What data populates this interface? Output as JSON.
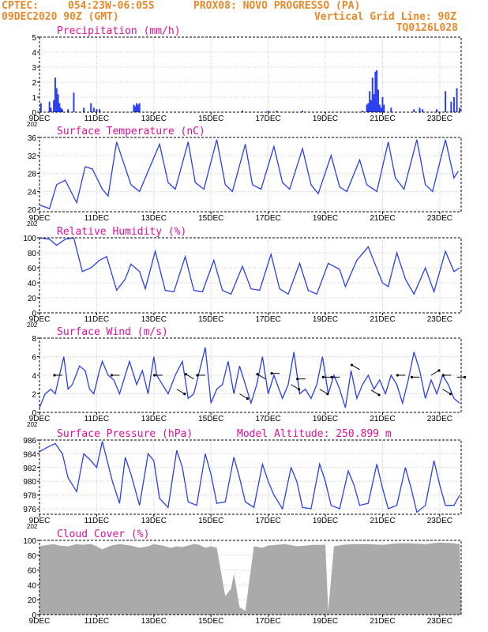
{
  "header": {
    "line1_left": "CPTEC:",
    "line1_coords": "054:23W-06:05S",
    "line1_station": "PROX08: NOVO PROGRESSO (PA)",
    "line2_left": "09DEC2020 90Z (GMT)",
    "line2_right": "Vertical Grid Line: 90Z",
    "line3_right": "TQ0126L028"
  },
  "colors": {
    "header": "#e8892a",
    "title": "#e0109a",
    "series": "#2a3ff0",
    "cloud": "#aaaaaa",
    "wind_arrow": "#000000",
    "grid": "#c8c8c8"
  },
  "x_ticks": [
    "9DEC",
    "11DEC",
    "13DEC",
    "15DEC",
    "17DEC",
    "19DEC",
    "21DEC",
    "23DEC"
  ],
  "x_cut_label": "202",
  "chart_data": [
    {
      "id": "precip",
      "type": "bar",
      "title": "Precipitation (mm/h)",
      "ylim": [
        0,
        5
      ],
      "yticks": [
        0,
        1,
        2,
        3,
        4,
        5
      ],
      "grid": true,
      "x_days_from_9dec": [
        0.05,
        0.35,
        0.4,
        0.5,
        0.55,
        0.6,
        0.65,
        0.7,
        0.75,
        0.8,
        1.0,
        1.2,
        1.55,
        1.8,
        1.9,
        2.0,
        2.1,
        3.3,
        3.35,
        3.4,
        3.45,
        3.5,
        7.1,
        8.0,
        8.3,
        9.2,
        11.3,
        11.45,
        11.5,
        11.55,
        11.6,
        11.65,
        11.7,
        11.75,
        11.8,
        11.85,
        11.9,
        11.95,
        12.0,
        12.05,
        12.3,
        13.1,
        13.3,
        13.4,
        13.9,
        14.2,
        14.4,
        14.5,
        14.6,
        14.7
      ],
      "values": [
        0.6,
        0.7,
        0.3,
        0.8,
        2.3,
        1.6,
        1.2,
        0.6,
        0.3,
        0.2,
        0.2,
        1.3,
        0.3,
        0.6,
        0.3,
        0.2,
        0.2,
        0.5,
        0.4,
        0.6,
        0.5,
        0.6,
        0.1,
        0.1,
        0.1,
        0.1,
        0.1,
        0.5,
        0.6,
        1.4,
        0.8,
        2.3,
        1.2,
        2.7,
        2.8,
        1.5,
        0.5,
        0.3,
        1.0,
        0.5,
        0.3,
        0.2,
        0.3,
        0.2,
        0.2,
        1.4,
        0.7,
        1.0,
        1.6,
        0.3
      ]
    },
    {
      "id": "temp",
      "type": "line",
      "title": "Surface Temperature (nC)",
      "ylim": [
        19.5,
        36
      ],
      "yticks": [
        20,
        24,
        28,
        32,
        36
      ],
      "grid": true,
      "x_days_from_9dec": [
        0,
        0.35,
        0.6,
        0.9,
        1.3,
        1.6,
        1.85,
        2.2,
        2.4,
        2.7,
        3.2,
        3.5,
        4.2,
        4.5,
        4.75,
        5.2,
        5.45,
        5.75,
        6.2,
        6.5,
        6.75,
        7.2,
        7.45,
        7.75,
        8.2,
        8.5,
        8.75,
        9.2,
        9.5,
        9.75,
        10.2,
        10.5,
        10.75,
        11.2,
        11.45,
        11.8,
        12.2,
        12.45,
        12.75,
        13.2,
        13.5,
        13.75,
        14.2,
        14.5,
        14.65
      ],
      "values": [
        21.0,
        20.2,
        25.5,
        26.5,
        21.5,
        29.5,
        29.0,
        24.5,
        23.0,
        35.0,
        25.5,
        24.0,
        34.5,
        26.0,
        24.5,
        35.0,
        26.0,
        24.5,
        35.5,
        25.5,
        24.0,
        34.5,
        25.5,
        24.5,
        34.0,
        26.0,
        24.5,
        33.5,
        25.5,
        23.5,
        32.0,
        25.0,
        24.0,
        31.0,
        25.5,
        24.0,
        35.0,
        27.0,
        24.5,
        35.5,
        25.5,
        24.0,
        35.5,
        27.0,
        28.5
      ]
    },
    {
      "id": "rh",
      "type": "line",
      "title": "Relative Humidity (%)",
      "ylim": [
        0,
        100
      ],
      "yticks": [
        0,
        20,
        40,
        60,
        80,
        100
      ],
      "grid": true,
      "x_days_from_9dec": [
        0,
        0.35,
        0.6,
        0.9,
        1.2,
        1.5,
        1.8,
        2.1,
        2.35,
        2.7,
        3.0,
        3.2,
        3.5,
        3.7,
        4.05,
        4.4,
        4.7,
        5.1,
        5.4,
        5.7,
        6.1,
        6.4,
        6.7,
        7.1,
        7.4,
        7.7,
        8.1,
        8.4,
        8.7,
        9.1,
        9.4,
        9.7,
        10.1,
        10.5,
        10.7,
        11.1,
        11.5,
        12.0,
        12.2,
        12.5,
        12.8,
        13.1,
        13.5,
        13.8,
        14.2,
        14.5,
        14.7
      ],
      "values": [
        100,
        98,
        90,
        98,
        100,
        55,
        60,
        70,
        75,
        30,
        45,
        65,
        55,
        32,
        82,
        30,
        28,
        75,
        30,
        28,
        70,
        30,
        25,
        62,
        32,
        30,
        78,
        32,
        25,
        66,
        30,
        25,
        66,
        58,
        35,
        70,
        88,
        40,
        35,
        80,
        45,
        25,
        60,
        28,
        82,
        55,
        60
      ]
    },
    {
      "id": "wind",
      "type": "line",
      "title": "Surface Wind (m/s)",
      "ylim": [
        0,
        8
      ],
      "yticks": [
        0,
        2,
        4,
        6,
        8
      ],
      "grid": true,
      "x_days_from_9dec": [
        0,
        0.2,
        0.4,
        0.55,
        0.7,
        0.85,
        1.0,
        1.15,
        1.4,
        1.6,
        1.75,
        1.9,
        2.1,
        2.2,
        2.4,
        2.6,
        2.8,
        3.0,
        3.15,
        3.4,
        3.6,
        3.8,
        4.0,
        4.1,
        4.3,
        4.5,
        4.75,
        5.0,
        5.2,
        5.4,
        5.6,
        5.8,
        6.0,
        6.2,
        6.4,
        6.6,
        6.8,
        7.0,
        7.2,
        7.4,
        7.6,
        7.8,
        8.0,
        8.2,
        8.5,
        8.7,
        8.9,
        9.1,
        9.3,
        9.5,
        9.7,
        9.9,
        10.1,
        10.3,
        10.5,
        10.7,
        10.9,
        11.1,
        11.3,
        11.5,
        11.7,
        11.9,
        12.1,
        12.3,
        12.5,
        12.7,
        12.9,
        13.1,
        13.3,
        13.5,
        13.7,
        13.9,
        14.1,
        14.3,
        14.5,
        14.7
      ],
      "values": [
        0.5,
        2.0,
        2.5,
        2.0,
        4.0,
        6.0,
        2.5,
        3.0,
        5.0,
        4.5,
        2.5,
        2.0,
        4.5,
        5.5,
        4.0,
        3.5,
        2.0,
        4.0,
        5.5,
        3.0,
        4.5,
        2.0,
        6.0,
        4.0,
        3.0,
        2.0,
        4.0,
        5.5,
        1.5,
        2.0,
        4.5,
        7.0,
        1.0,
        2.5,
        3.0,
        5.5,
        2.0,
        5.0,
        3.0,
        1.0,
        3.0,
        6.0,
        2.0,
        4.0,
        1.5,
        3.0,
        6.5,
        2.0,
        2.5,
        1.5,
        3.0,
        6.0,
        2.0,
        4.0,
        2.5,
        0.5,
        4.5,
        1.5,
        3.0,
        4.0,
        2.5,
        3.5,
        2.0,
        4.0,
        3.0,
        1.0,
        3.5,
        6.5,
        4.5,
        1.5,
        3.5,
        2.0,
        4.0,
        3.0,
        1.5,
        1.0
      ]
    },
    {
      "id": "pres",
      "type": "line",
      "title": "Surface Pressure (hPa)",
      "annotation": "Model Altitude: 250.899 m",
      "ylim": [
        975.2,
        986
      ],
      "yticks": [
        976,
        978,
        980,
        982,
        984,
        986
      ],
      "grid": true,
      "x_days_from_9dec": [
        0,
        0.3,
        0.55,
        0.8,
        1.0,
        1.3,
        1.55,
        1.8,
        2.0,
        2.2,
        2.55,
        2.8,
        3.0,
        3.2,
        3.5,
        3.8,
        4.0,
        4.2,
        4.5,
        4.8,
        5.0,
        5.2,
        5.5,
        5.8,
        6.0,
        6.2,
        6.5,
        6.8,
        7.0,
        7.2,
        7.5,
        7.8,
        8.0,
        8.2,
        8.5,
        8.8,
        9.0,
        9.2,
        9.5,
        9.8,
        10.0,
        10.2,
        10.5,
        10.8,
        11.0,
        11.2,
        11.5,
        11.8,
        12.0,
        12.2,
        12.5,
        12.8,
        13.0,
        13.2,
        13.5,
        13.8,
        14.0,
        14.2,
        14.5,
        14.7
      ],
      "values": [
        984.3,
        985.0,
        985.5,
        984.0,
        980.5,
        978.5,
        984.0,
        983.0,
        982.0,
        985.8,
        980.0,
        976.8,
        983.5,
        981.0,
        976.5,
        984.0,
        983.0,
        977.5,
        976.2,
        984.5,
        982.0,
        977.0,
        976.5,
        984.0,
        981.0,
        976.8,
        977.0,
        983.5,
        980.5,
        977.0,
        976.2,
        982.5,
        980.0,
        978.0,
        976.0,
        982.0,
        980.0,
        976.2,
        976.0,
        982.5,
        980.0,
        976.5,
        976.0,
        981.5,
        979.5,
        976.5,
        976.8,
        982.5,
        979.0,
        976.0,
        976.5,
        982.0,
        979.0,
        975.5,
        976.5,
        983.0,
        979.5,
        976.5,
        976.5,
        978.0
      ]
    },
    {
      "id": "cloud",
      "type": "area",
      "title": "Cloud Cover (%)",
      "ylim": [
        0,
        100
      ],
      "yticks": [
        0,
        20,
        40,
        60,
        80,
        100
      ],
      "grid": true,
      "x_days_from_9dec": [
        0,
        0.3,
        0.5,
        0.7,
        1.0,
        1.3,
        1.5,
        1.8,
        2.0,
        2.2,
        2.5,
        2.8,
        3.0,
        3.2,
        3.5,
        3.8,
        4.0,
        4.3,
        4.6,
        4.8,
        5.0,
        5.4,
        5.6,
        5.8,
        6.0,
        6.2,
        6.5,
        6.7,
        6.8,
        7.0,
        7.2,
        7.5,
        7.8,
        8.0,
        8.3,
        8.6,
        9.0,
        9.3,
        9.6,
        10.0,
        10.1,
        10.3,
        10.6,
        11.0,
        11.5,
        12.0,
        12.5,
        13.0,
        13.5,
        14.0,
        14.5,
        14.7
      ],
      "values": [
        92,
        94,
        95,
        93,
        92,
        95,
        94,
        95,
        92,
        88,
        93,
        95,
        94,
        93,
        90,
        92,
        95,
        93,
        90,
        92,
        91,
        95,
        94,
        90,
        92,
        90,
        25,
        35,
        55,
        10,
        5,
        92,
        90,
        93,
        94,
        95,
        92,
        93,
        94,
        94,
        5,
        92,
        94,
        95,
        95,
        94,
        96,
        96,
        95,
        97,
        96,
        95
      ]
    }
  ]
}
